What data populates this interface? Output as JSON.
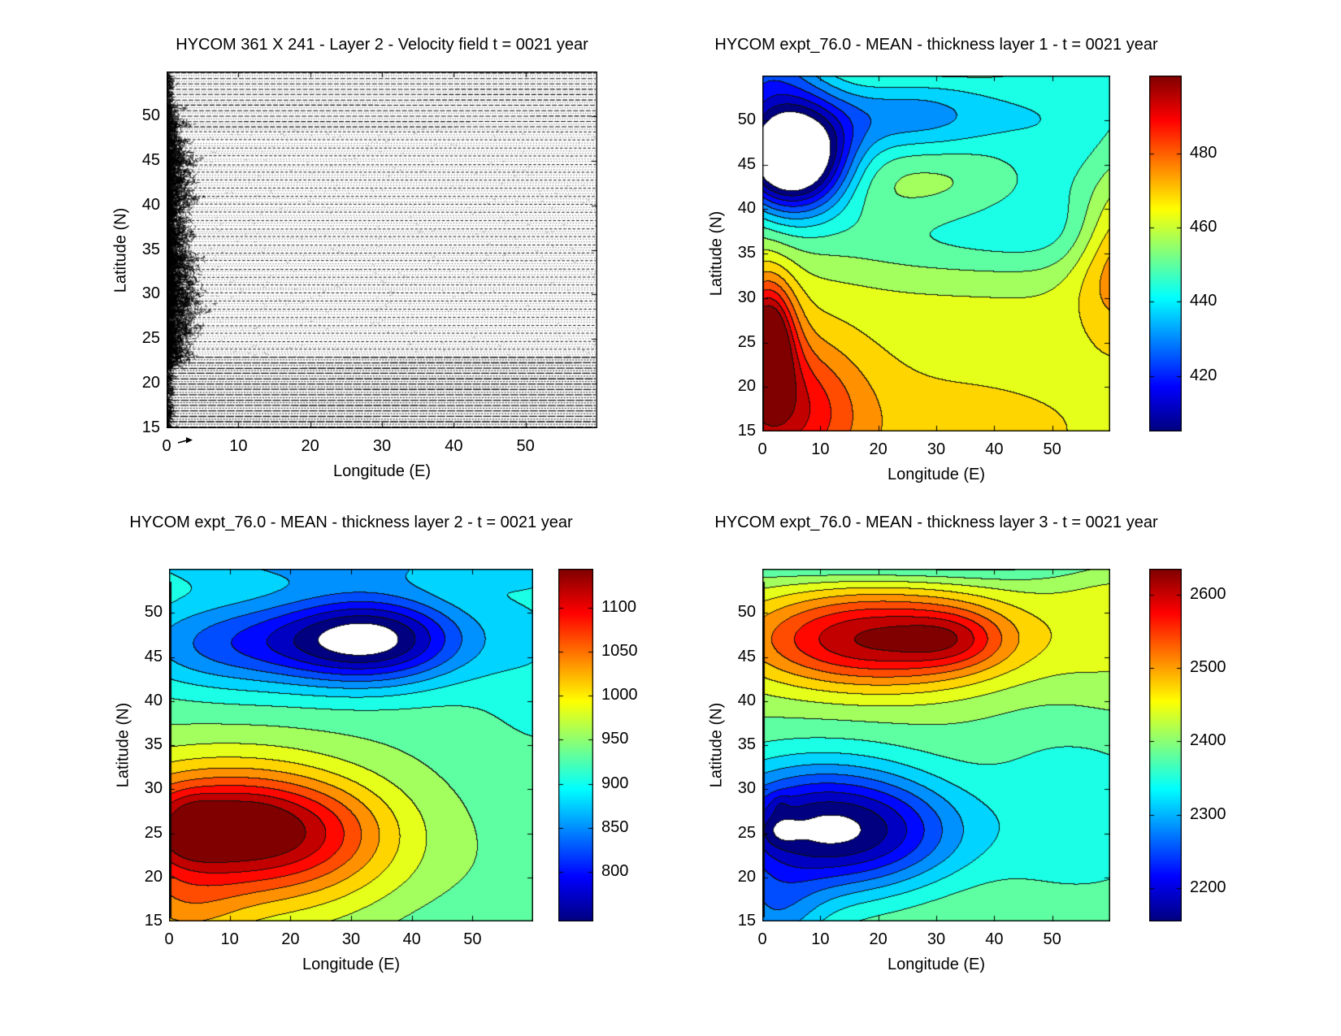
{
  "figure": {
    "background": "#ffffff",
    "axis_color": "#000000",
    "mask_color": "#ffffff",
    "colormap": "jet"
  },
  "chart_data": [
    {
      "type": "quiver",
      "title": "HYCOM 361 X 241 - Layer 2 - Velocity field  t = 0021 year",
      "xlabel": "Longitude (E)",
      "ylabel": "Latitude (N)",
      "xlim": [
        0,
        60
      ],
      "ylim": [
        15,
        55
      ],
      "xticks": [
        0,
        10,
        20,
        30,
        40,
        50
      ],
      "yticks": [
        15,
        20,
        25,
        30,
        35,
        40,
        45,
        50
      ],
      "description": "dense field of small black velocity arrows, mostly zonal; chaotic western-boundary jet along longitude 0-4",
      "texture": {
        "seed": 7,
        "row_spacing_px": 3.3,
        "bands": [
          {
            "lat_min": 48.5,
            "lat_max": 55,
            "style": "dense-dashed"
          },
          {
            "lat_min": 23,
            "lat_max": 48.5,
            "style": "fine-dotted"
          },
          {
            "lat_min": 15,
            "lat_max": 23,
            "style": "dense-solid"
          }
        ],
        "turbulence": {
          "lat_min": 22,
          "lat_max": 51,
          "bumps": [
            {
              "lat": 27.5,
              "amp": 3.2,
              "sig": 4
            },
            {
              "lat": 42.0,
              "amp": 2.4,
              "sig": 5
            },
            {
              "lat": 34.0,
              "amp": 1.2,
              "sig": 3
            }
          ]
        }
      },
      "reference_arrow": true
    },
    {
      "type": "filled-contour",
      "title": "HYCOM expt_76.0 - MEAN - thickness layer 1 - t = 0021 year",
      "xlabel": "Longitude (E)",
      "ylabel": "Latitude (N)",
      "xlim": [
        0,
        60
      ],
      "ylim": [
        15,
        55
      ],
      "xticks": [
        0,
        10,
        20,
        30,
        40,
        50
      ],
      "yticks": [
        15,
        20,
        25,
        30,
        35,
        40,
        45,
        50
      ],
      "colormap": "jet",
      "vmin": 405,
      "vmax": 501,
      "bands": 16,
      "colorbar_ticks": [
        480,
        460,
        440,
        420
      ],
      "masked_below_vmin": true,
      "left_edge_stripe": {
        "lat_min": 15,
        "lat_max": 40,
        "px": 2
      },
      "field": {
        "base": 461,
        "blobs": [
          [
            5,
            45.5,
            7,
            4.2,
            -75
          ],
          [
            25,
            50.5,
            13,
            3.5,
            -28
          ],
          [
            0,
            56,
            8,
            5,
            -30
          ],
          [
            58,
            56,
            14,
            7,
            -14
          ],
          [
            35,
            37,
            22,
            3.5,
            -14
          ],
          [
            52,
            44,
            10,
            6,
            -12
          ],
          [
            1,
            25,
            3.2,
            5,
            42
          ],
          [
            1.2,
            25.2,
            1.1,
            1.4,
            22
          ],
          [
            4,
            17.5,
            9,
            6,
            26
          ],
          [
            62,
            35,
            5.5,
            6,
            20
          ],
          [
            30,
            15,
            25,
            6,
            6
          ]
        ]
      }
    },
    {
      "type": "filled-contour",
      "title": "HYCOM expt_76.0 - MEAN - thickness layer 2 - t = 0021 year",
      "xlabel": "Longitude (E)",
      "ylabel": "Latitude (N)",
      "xlim": [
        0,
        60
      ],
      "ylim": [
        15,
        55
      ],
      "xticks": [
        0,
        10,
        20,
        30,
        40,
        50
      ],
      "yticks": [
        15,
        20,
        25,
        30,
        35,
        40,
        45,
        50
      ],
      "colormap": "jet",
      "vmin": 744,
      "vmax": 1144,
      "bands": 16,
      "colorbar_ticks": [
        1100,
        1050,
        1000,
        950,
        900,
        850,
        800
      ],
      "masked_below_vmin": true,
      "left_edge_stripe": {
        "lat_min": 15.5,
        "lat_max": 53.5,
        "px": 3
      },
      "field": {
        "base": 935,
        "blobs": [
          [
            33.5,
            47,
            11,
            3.6,
            -195
          ],
          [
            10,
            46.5,
            13,
            3.8,
            -95
          ],
          [
            25,
            56.5,
            26,
            2.6,
            -70
          ],
          [
            9,
            25.5,
            16,
            5.2,
            195
          ],
          [
            25,
            25,
            10,
            4,
            40
          ],
          [
            4,
            27.3,
            3.2,
            1.7,
            26
          ],
          [
            3.5,
            23.8,
            4,
            1.8,
            26
          ],
          [
            13,
            26.3,
            4.5,
            2,
            18
          ],
          [
            2,
            15.5,
            7,
            3.5,
            45
          ],
          [
            20,
            17,
            18,
            5,
            30
          ],
          [
            62,
            47,
            9,
            9,
            -35
          ],
          [
            50,
            13,
            18,
            4,
            -20
          ]
        ]
      }
    },
    {
      "type": "filled-contour",
      "title": "HYCOM expt_76.0 - MEAN - thickness layer 3 - t = 0021 year",
      "xlabel": "Longitude (E)",
      "ylabel": "Latitude (N)",
      "xlim": [
        0,
        60
      ],
      "ylim": [
        15,
        55
      ],
      "xticks": [
        0,
        10,
        20,
        30,
        40,
        50
      ],
      "yticks": [
        15,
        20,
        25,
        30,
        35,
        40,
        45,
        50
      ],
      "colormap": "jet",
      "vmin": 2155,
      "vmax": 2635,
      "bands": 16,
      "colorbar_ticks": [
        2600,
        2500,
        2400,
        2300,
        2200
      ],
      "masked_below_vmin": true,
      "left_edge_stripe": {
        "lat_min": 15.5,
        "lat_max": 53.5,
        "px": 3
      },
      "field": {
        "base": 2395,
        "blobs": [
          [
            20,
            47,
            17,
            4,
            215
          ],
          [
            33,
            47,
            6,
            2.2,
            55
          ],
          [
            25,
            56.5,
            28,
            2,
            -80
          ],
          [
            10,
            25.5,
            14,
            5.2,
            -235
          ],
          [
            25,
            25,
            10,
            4,
            -45
          ],
          [
            3,
            25.3,
            2.2,
            1.3,
            -40
          ],
          [
            3,
            28.3,
            1.2,
            0.8,
            -25
          ],
          [
            2,
            15.5,
            6,
            3.5,
            -80
          ],
          [
            62,
            50,
            9,
            8,
            40
          ],
          [
            55,
            27,
            12,
            8,
            -55
          ],
          [
            50,
            14,
            20,
            4,
            12
          ]
        ]
      }
    }
  ]
}
